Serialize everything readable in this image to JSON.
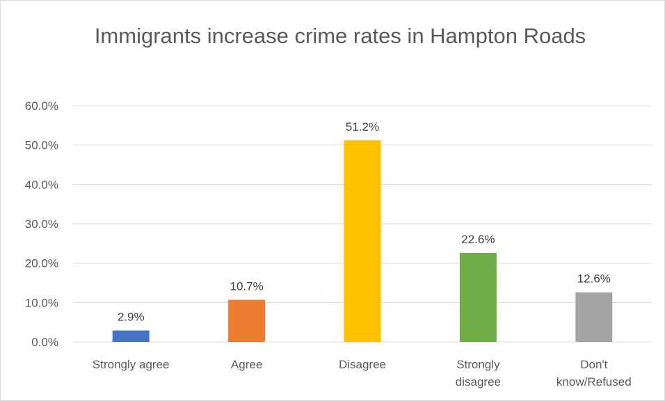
{
  "chart_data": {
    "type": "bar",
    "title": "Immigrants increase crime rates in Hampton Roads",
    "categories": [
      [
        "Strongly agree"
      ],
      [
        "Agree"
      ],
      [
        "Disagree"
      ],
      [
        "Strongly",
        "disagree"
      ],
      [
        "Don't",
        "know/Refused"
      ]
    ],
    "values": [
      2.9,
      10.7,
      51.2,
      22.6,
      12.6
    ],
    "data_labels": [
      "2.9%",
      "10.7%",
      "51.2%",
      "22.6%",
      "12.6%"
    ],
    "colors": [
      "#4472c4",
      "#ed7d31",
      "#ffc000",
      "#70ad47",
      "#a5a5a5"
    ],
    "ylim": [
      0,
      60
    ],
    "yticks": [
      0,
      10,
      20,
      30,
      40,
      50,
      60
    ],
    "ytick_labels": [
      "0.0%",
      "10.0%",
      "20.0%",
      "30.0%",
      "40.0%",
      "50.0%",
      "60.0%"
    ],
    "grid": true,
    "legend": "none"
  }
}
